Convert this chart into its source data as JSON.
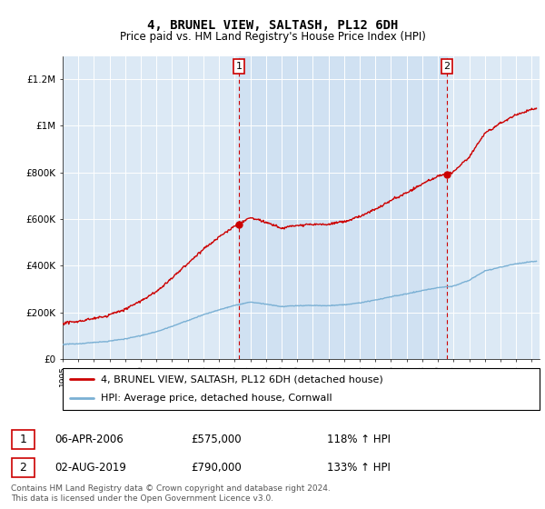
{
  "title": "4, BRUNEL VIEW, SALTASH, PL12 6DH",
  "subtitle": "Price paid vs. HM Land Registry's House Price Index (HPI)",
  "hpi_label": "HPI: Average price, detached house, Cornwall",
  "property_label": "4, BRUNEL VIEW, SALTASH, PL12 6DH (detached house)",
  "annotation1": {
    "label": "1",
    "date": "06-APR-2006",
    "price": 575000,
    "pct": "118% ↑ HPI"
  },
  "annotation2": {
    "label": "2",
    "date": "02-AUG-2019",
    "price": 790000,
    "pct": "133% ↑ HPI"
  },
  "footer": "Contains HM Land Registry data © Crown copyright and database right 2024.\nThis data is licensed under the Open Government Licence v3.0.",
  "bg_color": "#dce9f5",
  "bg_color_between": "#c8ddf0",
  "red_color": "#cc0000",
  "blue_color": "#7ab0d4",
  "ylim": [
    0,
    1300000
  ],
  "xmin": 1995.0,
  "xmax": 2025.5,
  "sale1_x": 2006.27,
  "sale2_x": 2019.58,
  "hpi_base_years": [
    1995,
    1996,
    1997,
    1998,
    1999,
    2000,
    2001,
    2002,
    2003,
    2004,
    2005,
    2006,
    2007,
    2008,
    2009,
    2010,
    2011,
    2012,
    2013,
    2014,
    2015,
    2016,
    2017,
    2018,
    2019,
    2020,
    2021,
    2022,
    2023,
    2024,
    2025
  ],
  "hpi_base_vals": [
    62000,
    65000,
    70000,
    76000,
    85000,
    98000,
    115000,
    138000,
    163000,
    188000,
    208000,
    228000,
    242000,
    235000,
    224000,
    228000,
    230000,
    228000,
    232000,
    240000,
    252000,
    265000,
    278000,
    292000,
    304000,
    310000,
    335000,
    375000,
    390000,
    405000,
    415000
  ]
}
